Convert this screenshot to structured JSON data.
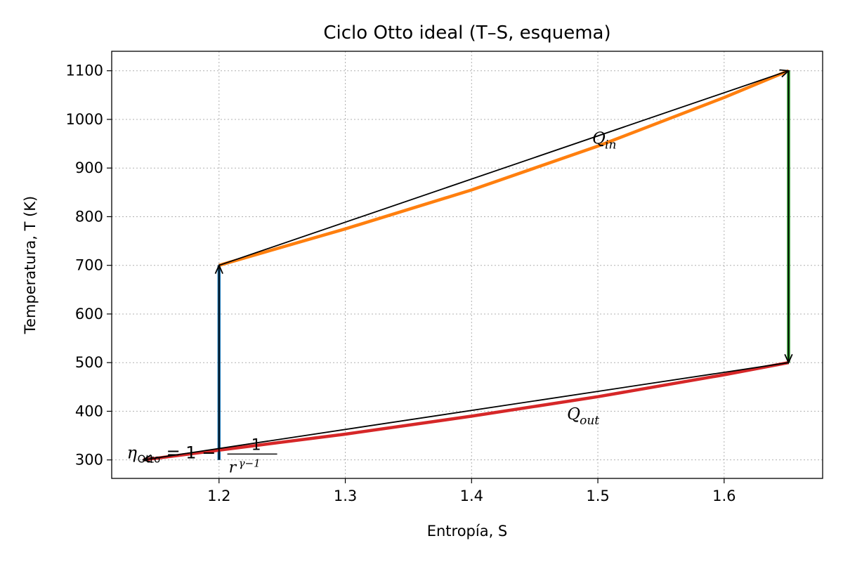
{
  "chart_data": {
    "type": "line",
    "title": "Ciclo Otto ideal (T–S, esquema)",
    "xlabel": "Entropía, S",
    "ylabel": "Temperatura, T (K)",
    "xlim": [
      1.115,
      1.678
    ],
    "ylim": [
      262,
      1140
    ],
    "xticks": [
      1.2,
      1.3,
      1.4,
      1.5,
      1.6
    ],
    "yticks": [
      300,
      400,
      500,
      600,
      700,
      800,
      900,
      1000,
      1100
    ],
    "grid": true,
    "colors": {
      "compression": "#1f77b4",
      "heat_in": "#ff7f0e",
      "expansion": "#2ca02c",
      "heat_out": "#d62728",
      "arrow": "#000000",
      "grid": "#b0b0b0"
    },
    "series": [
      {
        "x": [
          1.2,
          1.2
        ],
        "y": [
          300,
          700
        ]
      },
      {
        "x": [
          1.2,
          1.3,
          1.4,
          1.5,
          1.6,
          1.651
        ],
        "y": [
          700,
          775,
          855,
          945,
          1045,
          1100
        ]
      },
      {
        "x": [
          1.651,
          1.651
        ],
        "y": [
          1100,
          500
        ]
      },
      {
        "x": [
          1.651,
          1.6,
          1.5,
          1.4,
          1.3,
          1.2,
          1.14
        ],
        "y": [
          500,
          475,
          430,
          390,
          353,
          320,
          300
        ]
      }
    ],
    "arrows": [
      {
        "from": [
          1.2,
          300
        ],
        "to": [
          1.2,
          700
        ]
      },
      {
        "from": [
          1.2,
          700
        ],
        "to": [
          1.651,
          1100
        ]
      },
      {
        "from": [
          1.651,
          1100
        ],
        "to": [
          1.651,
          500
        ]
      },
      {
        "from": [
          1.651,
          500
        ],
        "to": [
          1.14,
          300
        ]
      }
    ],
    "annotations": [
      {
        "kind": "sub",
        "base": "Q",
        "sub": "in",
        "x": 1.5,
        "y": 962
      },
      {
        "kind": "sub",
        "base": "Q",
        "sub": "out",
        "x": 1.48,
        "y": 395
      },
      {
        "kind": "formula",
        "eta": "η",
        "sub": "Otto",
        "rhs": "= 1 −",
        "num": "1",
        "den_base": "r",
        "den_exp": "γ−1",
        "x": 1.127,
        "y": 315
      }
    ]
  }
}
